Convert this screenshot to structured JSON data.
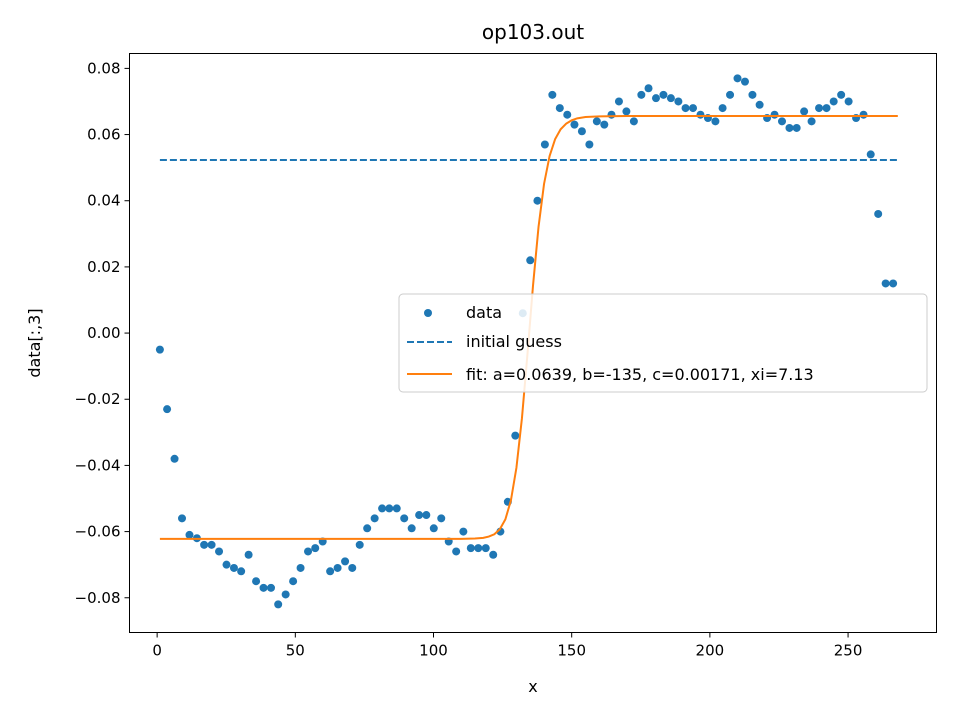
{
  "chart_data": {
    "type": "scatter",
    "title": "op103.out",
    "xlabel": "x",
    "ylabel": "data[:,3]",
    "xlim": [
      -10,
      282
    ],
    "ylim": [
      -0.0905,
      0.0845
    ],
    "xticks": [
      "0",
      "50",
      "100",
      "150",
      "200",
      "250"
    ],
    "yticks": [
      "0.08",
      "0.06",
      "0.04",
      "0.02",
      "0.00",
      "−0.02",
      "−0.04",
      "−0.06",
      "−0.08"
    ],
    "grid": false,
    "legend_position": "center-right",
    "colors": {
      "data": "#1f77b4",
      "initial_guess": "#1f77b4",
      "fit": "#ff7f0e"
    },
    "series": [
      {
        "name": "data",
        "kind": "scatter",
        "x": [
          1,
          3.6,
          6.3,
          9,
          11.7,
          14.4,
          17,
          19.7,
          22.4,
          25.1,
          27.8,
          30.4,
          33.1,
          35.8,
          38.5,
          41.2,
          43.8,
          46.5,
          49.2,
          51.9,
          54.6,
          57.2,
          59.9,
          62.6,
          65.3,
          68,
          70.6,
          73.3,
          76,
          78.7,
          81.4,
          84,
          86.7,
          89.4,
          92.1,
          94.8,
          97.4,
          100.1,
          102.8,
          105.5,
          108.2,
          110.8,
          113.5,
          116.2,
          118.9,
          121.6,
          124.2,
          126.9,
          129.6,
          132.3,
          135,
          137.6,
          140.3,
          143,
          145.7,
          148.4,
          151,
          153.7,
          156.4,
          159.1,
          161.8,
          164.4,
          167.1,
          169.8,
          172.5,
          175.2,
          177.8,
          180.5,
          183.2,
          185.9,
          188.6,
          191.2,
          193.9,
          196.6,
          199.3,
          202,
          204.6,
          207.3,
          210,
          212.7,
          215.4,
          218,
          220.7,
          223.4,
          226.1,
          228.8,
          231.4,
          234.1,
          236.8,
          239.5,
          242.2,
          244.8,
          247.5,
          250.2,
          252.9,
          255.6,
          258.2,
          260.9,
          263.6,
          266.3
        ],
        "y": [
          -0.005,
          -0.023,
          -0.038,
          -0.056,
          -0.061,
          -0.062,
          -0.064,
          -0.064,
          -0.066,
          -0.07,
          -0.071,
          -0.072,
          -0.067,
          -0.075,
          -0.077,
          -0.077,
          -0.082,
          -0.079,
          -0.075,
          -0.071,
          -0.066,
          -0.065,
          -0.063,
          -0.072,
          -0.071,
          -0.069,
          -0.071,
          -0.064,
          -0.059,
          -0.056,
          -0.053,
          -0.053,
          -0.053,
          -0.056,
          -0.059,
          -0.055,
          -0.055,
          -0.059,
          -0.056,
          -0.063,
          -0.066,
          -0.06,
          -0.065,
          -0.065,
          -0.065,
          -0.067,
          -0.06,
          -0.051,
          -0.031,
          0.006,
          0.022,
          0.04,
          0.057,
          0.072,
          0.068,
          0.066,
          0.063,
          0.061,
          0.057,
          0.064,
          0.063,
          0.066,
          0.07,
          0.067,
          0.064,
          0.072,
          0.074,
          0.071,
          0.072,
          0.071,
          0.07,
          0.068,
          0.068,
          0.066,
          0.065,
          0.064,
          0.068,
          0.072,
          0.077,
          0.076,
          0.072,
          0.069,
          0.065,
          0.066,
          0.064,
          0.062,
          0.062,
          0.067,
          0.064,
          0.068,
          0.068,
          0.07,
          0.072,
          0.07,
          0.065,
          0.066,
          0.054,
          0.036,
          0.015,
          0.015
        ]
      },
      {
        "name": "initial guess",
        "kind": "line-dashed",
        "x": [
          1,
          268
        ],
        "y": [
          0.0523,
          0.0523
        ]
      },
      {
        "name": "fit: a=0.0639, b=-135, c=0.00171, xi=7.13",
        "kind": "line",
        "x": [
          1,
          100,
          110,
          115,
          118,
          120,
          122,
          124,
          126,
          128,
          130,
          132,
          134,
          136,
          138,
          140,
          142,
          144,
          146,
          148,
          150,
          152,
          155,
          160,
          170,
          268
        ],
        "y": [
          -0.0622,
          -0.0622,
          -0.0622,
          -0.0621,
          -0.0619,
          -0.0615,
          -0.0608,
          -0.0593,
          -0.0563,
          -0.0506,
          -0.0407,
          -0.0257,
          -0.0063,
          0.0143,
          0.0321,
          0.0451,
          0.0535,
          0.0586,
          0.0616,
          0.0633,
          0.0643,
          0.0649,
          0.0653,
          0.0655,
          0.0656,
          0.0656
        ]
      }
    ]
  }
}
